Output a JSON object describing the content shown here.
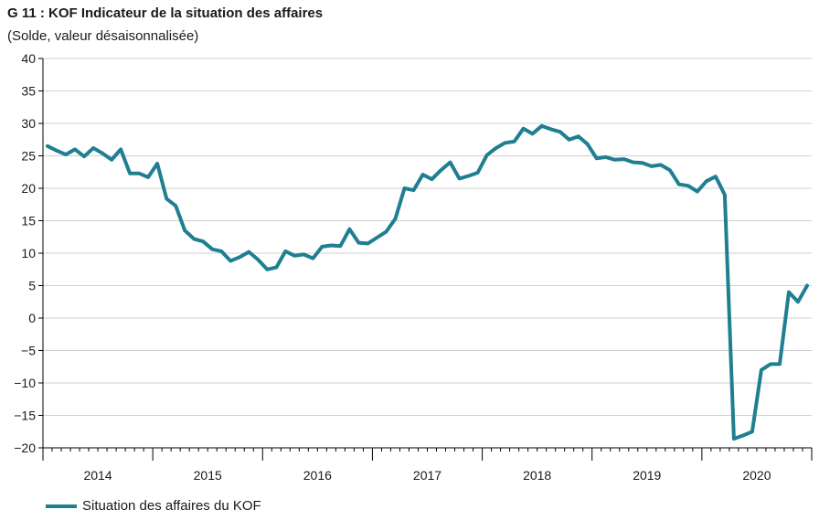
{
  "header": {
    "title": "G 11 : KOF Indicateur de la situation des affaires",
    "subtitle": "(Solde, valeur désaisonnalisée)"
  },
  "colors": {
    "series": "#1f7f91",
    "grid": "#cfcfcf",
    "axis": "#000000"
  },
  "chart_data": {
    "type": "line",
    "title": "G 11 : KOF Indicateur de la situation des affaires",
    "subtitle": "(Solde, valeur désaisonnalisée)",
    "ylim": [
      -20,
      40
    ],
    "yticks": [
      "40",
      "35",
      "30",
      "25",
      "20",
      "15",
      "10",
      "5",
      "0",
      "−5",
      "−10",
      "−15",
      "−20"
    ],
    "ytick_values": [
      40,
      35,
      30,
      25,
      20,
      15,
      10,
      5,
      0,
      -5,
      -10,
      -15,
      -20
    ],
    "x_start": "2014-01",
    "x_end": "2020-12",
    "year_labels": [
      "2014",
      "2015",
      "2016",
      "2017",
      "2018",
      "2019",
      "2020"
    ],
    "grid": true,
    "legend_position": "bottom-left",
    "series": [
      {
        "name": "Situation des affaires du KOF",
        "x": [
          "2014-01",
          "2014-02",
          "2014-03",
          "2014-04",
          "2014-05",
          "2014-06",
          "2014-07",
          "2014-08",
          "2014-09",
          "2014-10",
          "2014-11",
          "2014-12",
          "2015-01",
          "2015-02",
          "2015-03",
          "2015-04",
          "2015-05",
          "2015-06",
          "2015-07",
          "2015-08",
          "2015-09",
          "2015-10",
          "2015-11",
          "2015-12",
          "2016-01",
          "2016-02",
          "2016-03",
          "2016-04",
          "2016-05",
          "2016-06",
          "2016-07",
          "2016-08",
          "2016-09",
          "2016-10",
          "2016-11",
          "2016-12",
          "2017-01",
          "2017-02",
          "2017-03",
          "2017-04",
          "2017-05",
          "2017-06",
          "2017-07",
          "2017-08",
          "2017-09",
          "2017-10",
          "2017-11",
          "2017-12",
          "2018-01",
          "2018-02",
          "2018-03",
          "2018-04",
          "2018-05",
          "2018-06",
          "2018-07",
          "2018-08",
          "2018-09",
          "2018-10",
          "2018-11",
          "2018-12",
          "2019-01",
          "2019-02",
          "2019-03",
          "2019-04",
          "2019-05",
          "2019-06",
          "2019-07",
          "2019-08",
          "2019-09",
          "2019-10",
          "2019-11",
          "2019-12",
          "2020-01",
          "2020-02",
          "2020-03",
          "2020-04",
          "2020-05",
          "2020-06",
          "2020-07",
          "2020-08",
          "2020-09",
          "2020-10",
          "2020-11",
          "2020-12"
        ],
        "values": [
          26.5,
          25.8,
          25.2,
          26.0,
          24.9,
          26.2,
          25.4,
          24.4,
          26.0,
          22.3,
          22.3,
          21.7,
          23.8,
          18.4,
          17.3,
          13.5,
          12.2,
          11.8,
          10.6,
          10.3,
          8.8,
          9.4,
          10.2,
          9.0,
          7.5,
          7.8,
          10.3,
          9.6,
          9.8,
          9.2,
          11.0,
          11.2,
          11.1,
          13.7,
          11.6,
          11.5,
          12.4,
          13.3,
          15.3,
          20.0,
          19.7,
          22.1,
          21.4,
          22.8,
          24.0,
          21.5,
          21.9,
          22.4,
          25.1,
          26.2,
          27.0,
          27.2,
          29.2,
          28.4,
          29.6,
          29.1,
          28.7,
          27.5,
          28.0,
          26.8,
          24.6,
          24.8,
          24.4,
          24.5,
          24.0,
          23.9,
          23.4,
          23.6,
          22.8,
          20.6,
          20.4,
          19.5,
          21.1,
          21.8,
          19.0,
          -18.6,
          -18.1,
          -17.5,
          -8.0,
          -7.1,
          -7.1,
          4.0,
          2.5,
          5.0
        ]
      }
    ]
  }
}
